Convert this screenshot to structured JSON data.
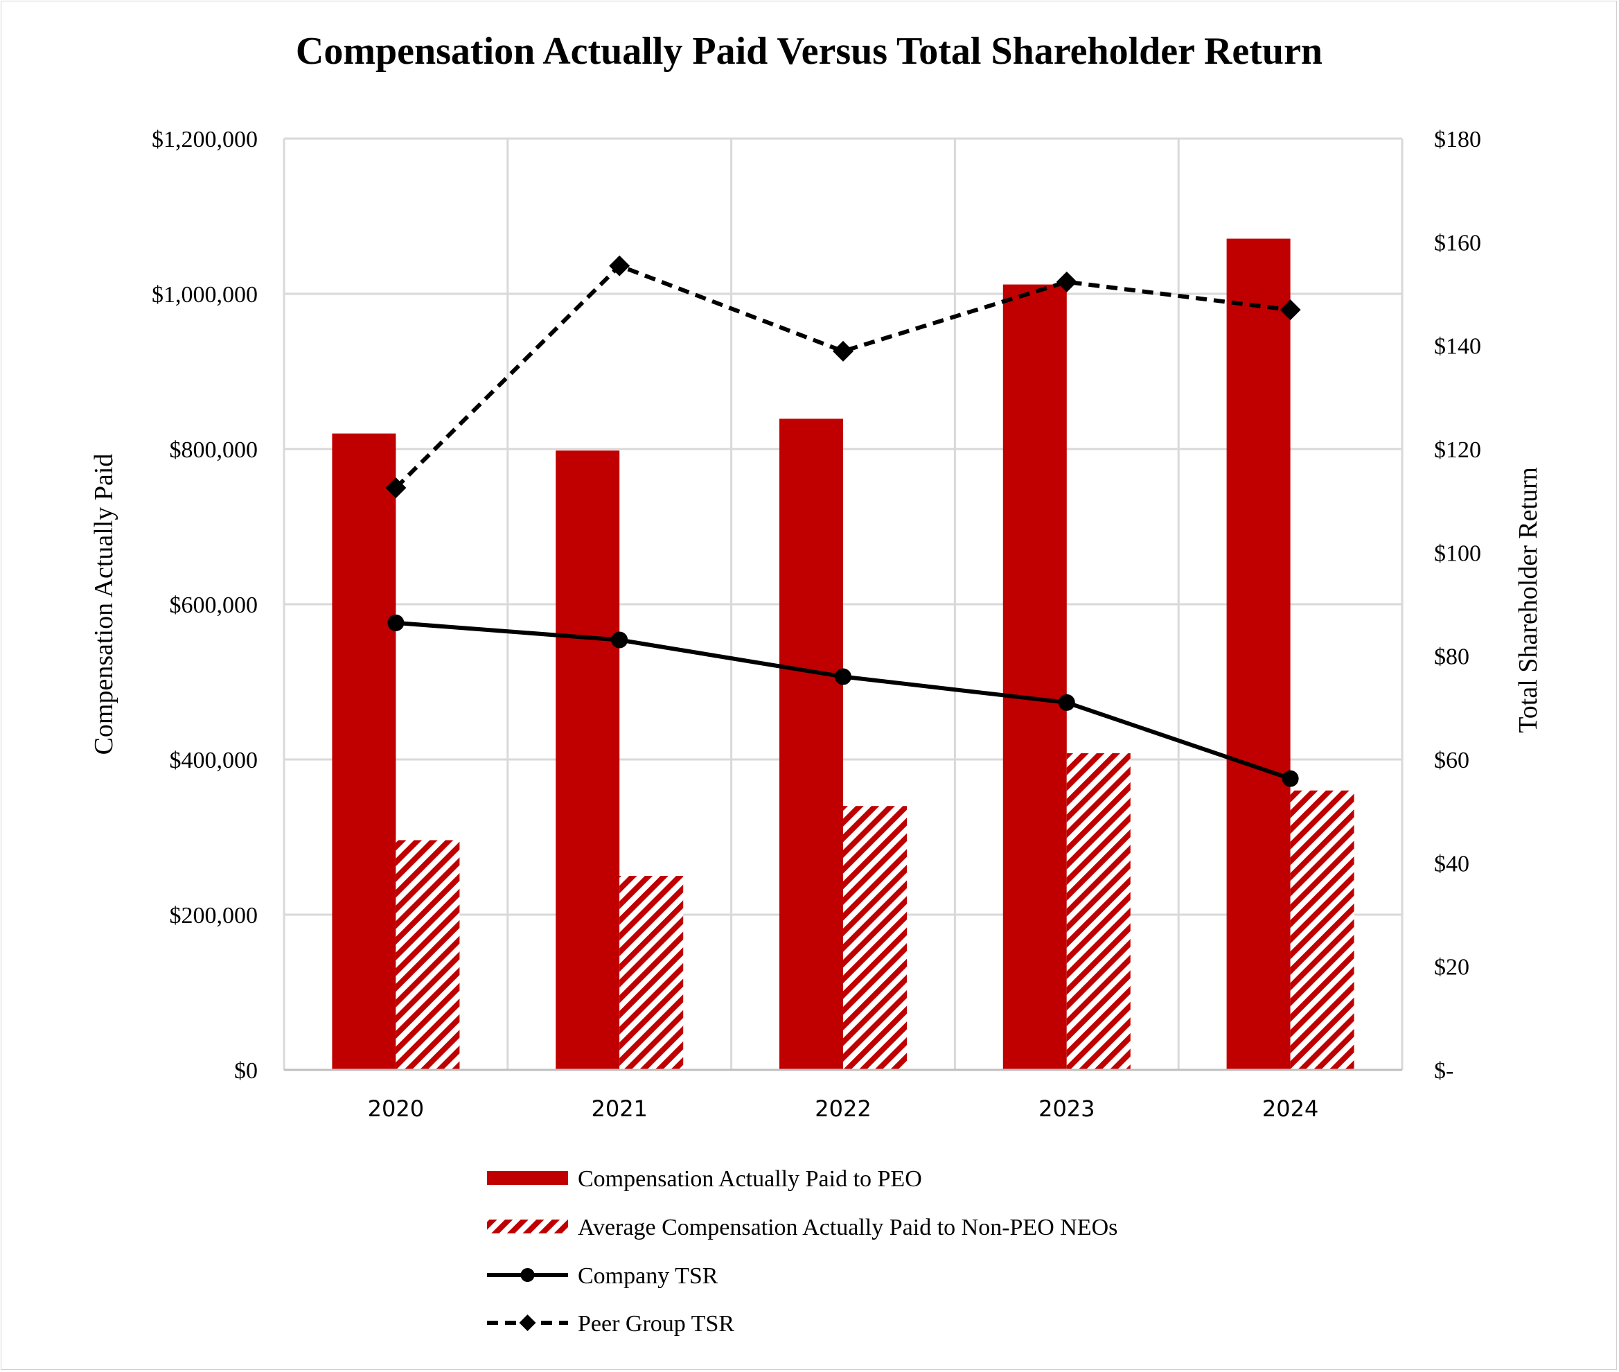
{
  "chart_data": {
    "type": "bar+line",
    "title": "Compensation Actually Paid Versus Total Shareholder Return",
    "categories": [
      "2020",
      "2021",
      "2022",
      "2023",
      "2024"
    ],
    "y_left": {
      "label": "Compensation Actually Paid",
      "range": [
        0,
        1200000
      ],
      "ticks": [
        0,
        200000,
        400000,
        600000,
        800000,
        1000000,
        1200000
      ],
      "tick_labels": [
        "$0",
        "$200,000",
        "$400,000",
        "$600,000",
        "$800,000",
        "$1,000,000",
        "$1,200,000"
      ]
    },
    "y_right": {
      "label": "Total Shareholder Return",
      "range": [
        0,
        180
      ],
      "ticks": [
        0,
        20,
        40,
        60,
        80,
        100,
        120,
        140,
        160,
        180
      ],
      "tick_labels": [
        "$-",
        "$20",
        "$40",
        "$60",
        "$80",
        "$100",
        "$120",
        "$140",
        "$160",
        "$180"
      ]
    },
    "grid": true,
    "legend_position": "bottom",
    "series": [
      {
        "name": "Compensation Actually Paid to PEO",
        "type": "bar",
        "axis": "left",
        "style": "solid",
        "color": "#c00000",
        "values": [
          820000,
          798000,
          839000,
          1012000,
          1071000
        ]
      },
      {
        "name": "Average Compensation Actually Paid to Non-PEO NEOs",
        "type": "bar",
        "axis": "left",
        "style": "hatched",
        "color": "#c00000",
        "values": [
          296000,
          250000,
          340000,
          408000,
          360000
        ]
      },
      {
        "name": "Company TSR",
        "type": "line",
        "axis": "right",
        "style": "solid",
        "marker": "circle",
        "color": "#000000",
        "values": [
          86.4,
          83.1,
          76.0,
          71.0,
          56.3
        ]
      },
      {
        "name": "Peer Group TSR",
        "type": "line",
        "axis": "right",
        "style": "dashed",
        "marker": "diamond",
        "color": "#000000",
        "values": [
          112.5,
          155.4,
          138.9,
          152.3,
          146.9
        ]
      }
    ]
  }
}
